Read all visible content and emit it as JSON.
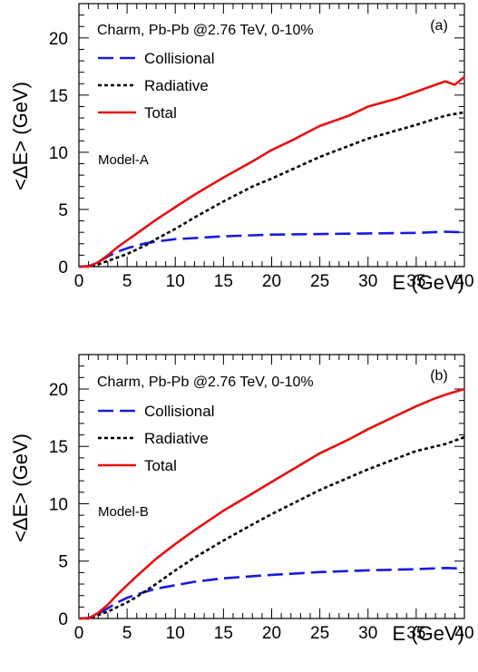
{
  "chart_data": [
    {
      "type": "line",
      "panel_label": "(a)",
      "title": "Charm, Pb-Pb @2.76 TeV, 0-10%",
      "annotation": "Model-A",
      "xlabel": "E (GeV)",
      "ylabel": "<ΔE> (GeV)",
      "xlim": [
        0,
        40
      ],
      "ylim": [
        0,
        23
      ],
      "xticks": [
        0,
        5,
        10,
        15,
        20,
        25,
        30,
        35,
        40
      ],
      "yticks": [
        0,
        5,
        10,
        15,
        20
      ],
      "grid": false,
      "legend_position": "top-left",
      "series": [
        {
          "name": "Collisional",
          "color": "#1a1adc",
          "style": "dashed",
          "x": [
            0,
            1,
            1.5,
            2,
            3,
            4,
            5,
            6,
            7,
            8,
            10,
            12,
            15,
            20,
            25,
            30,
            35,
            38,
            40
          ],
          "y": [
            0,
            0.05,
            0.2,
            0.4,
            0.9,
            1.3,
            1.6,
            1.85,
            2.05,
            2.2,
            2.4,
            2.5,
            2.65,
            2.8,
            2.85,
            2.9,
            2.95,
            3.05,
            3.0
          ]
        },
        {
          "name": "Radiative",
          "color": "#000000",
          "style": "dotted",
          "x": [
            0,
            1,
            2,
            3,
            4,
            5,
            6,
            7,
            8,
            10,
            12,
            15,
            18,
            20,
            25,
            30,
            35,
            38,
            40
          ],
          "y": [
            0,
            0,
            0.2,
            0.5,
            0.8,
            1.1,
            1.5,
            1.9,
            2.4,
            3.3,
            4.3,
            5.7,
            7.0,
            7.7,
            9.6,
            11.2,
            12.4,
            13.2,
            13.5
          ]
        },
        {
          "name": "Total",
          "color": "#e81010",
          "style": "solid",
          "x": [
            0,
            1,
            2,
            3,
            4,
            5,
            6,
            8,
            10,
            12,
            15,
            18,
            20,
            22,
            25,
            28,
            30,
            33,
            35,
            37,
            38,
            39,
            40
          ],
          "y": [
            0,
            0,
            0.4,
            1.0,
            1.7,
            2.3,
            2.9,
            4.1,
            5.2,
            6.3,
            7.8,
            9.2,
            10.2,
            11.0,
            12.3,
            13.2,
            14.0,
            14.7,
            15.3,
            15.9,
            16.2,
            15.9,
            16.6
          ]
        }
      ]
    },
    {
      "type": "line",
      "panel_label": "(b)",
      "title": "Charm, Pb-Pb @2.76 TeV, 0-10%",
      "annotation": "Model-B",
      "xlabel": "E (GeV)",
      "ylabel": "<ΔE> (GeV)",
      "xlim": [
        0,
        40
      ],
      "ylim": [
        0,
        23
      ],
      "xticks": [
        0,
        5,
        10,
        15,
        20,
        25,
        30,
        35,
        40
      ],
      "yticks": [
        0,
        5,
        10,
        15,
        20
      ],
      "grid": false,
      "legend_position": "top-left",
      "series": [
        {
          "name": "Collisional",
          "color": "#1a1adc",
          "style": "dashed",
          "x": [
            0,
            1,
            1.5,
            2,
            3,
            4,
            5,
            6,
            7,
            8,
            10,
            12,
            15,
            20,
            25,
            30,
            35,
            38,
            40
          ],
          "y": [
            0,
            0.05,
            0.2,
            0.4,
            0.9,
            1.4,
            1.8,
            2.1,
            2.35,
            2.6,
            2.9,
            3.2,
            3.5,
            3.8,
            4.05,
            4.2,
            4.3,
            4.4,
            4.35
          ]
        },
        {
          "name": "Radiative",
          "color": "#000000",
          "style": "dotted",
          "x": [
            0,
            1,
            2,
            3,
            4,
            5,
            6,
            8,
            10,
            12,
            15,
            18,
            20,
            25,
            30,
            35,
            38,
            40
          ],
          "y": [
            0,
            0,
            0.3,
            0.6,
            1.0,
            1.4,
            1.9,
            3.0,
            4.2,
            5.3,
            6.8,
            8.2,
            9.1,
            11.2,
            13.0,
            14.6,
            15.2,
            15.8
          ]
        },
        {
          "name": "Total",
          "color": "#e81010",
          "style": "solid",
          "x": [
            0,
            1,
            2,
            3,
            4,
            5,
            6,
            8,
            10,
            12,
            15,
            18,
            20,
            22,
            25,
            28,
            30,
            33,
            35,
            37,
            38,
            40
          ],
          "y": [
            0,
            0,
            0.5,
            1.2,
            2.1,
            2.9,
            3.7,
            5.2,
            6.5,
            7.7,
            9.4,
            10.9,
            11.9,
            12.9,
            14.4,
            15.6,
            16.5,
            17.7,
            18.5,
            19.2,
            19.5,
            20.0
          ]
        }
      ]
    }
  ]
}
